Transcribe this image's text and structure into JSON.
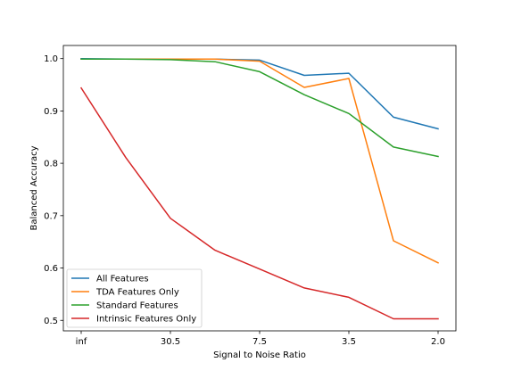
{
  "chart_data": {
    "type": "line",
    "x_tick_labels": [
      "inf",
      "",
      "30.5",
      "",
      "7.5",
      "",
      "3.5",
      "",
      "2.0"
    ],
    "x_positions": [
      0,
      1,
      2,
      3,
      4,
      5,
      6,
      7,
      8
    ],
    "xlabel": "Signal to Noise Ratio",
    "ylabel": "Balanced Accuracy",
    "ylim": [
      0.48,
      1.025
    ],
    "yticks": [
      0.5,
      0.6,
      0.7,
      0.8,
      0.9,
      1.0
    ],
    "ytick_labels": [
      "0.5",
      "0.6",
      "0.7",
      "0.8",
      "0.9",
      "1.0"
    ],
    "legend_position": "lower-left",
    "series": [
      {
        "name": "All Features",
        "color": "#1f77b4",
        "values": [
          1.0,
          0.999,
          0.999,
          0.999,
          0.997,
          0.968,
          0.972,
          0.888,
          0.866
        ]
      },
      {
        "name": "TDA Features Only",
        "color": "#ff7f0e",
        "values": [
          0.999,
          0.999,
          0.999,
          0.999,
          0.995,
          0.945,
          0.962,
          0.652,
          0.61
        ]
      },
      {
        "name": "Standard Features",
        "color": "#2ca02c",
        "values": [
          0.999,
          0.999,
          0.998,
          0.994,
          0.975,
          0.931,
          0.895,
          0.831,
          0.813
        ]
      },
      {
        "name": "Intrinsic Features Only",
        "color": "#d62728",
        "values": [
          0.944,
          0.811,
          0.695,
          0.634,
          0.598,
          0.562,
          0.544,
          0.503,
          0.503
        ]
      }
    ]
  }
}
